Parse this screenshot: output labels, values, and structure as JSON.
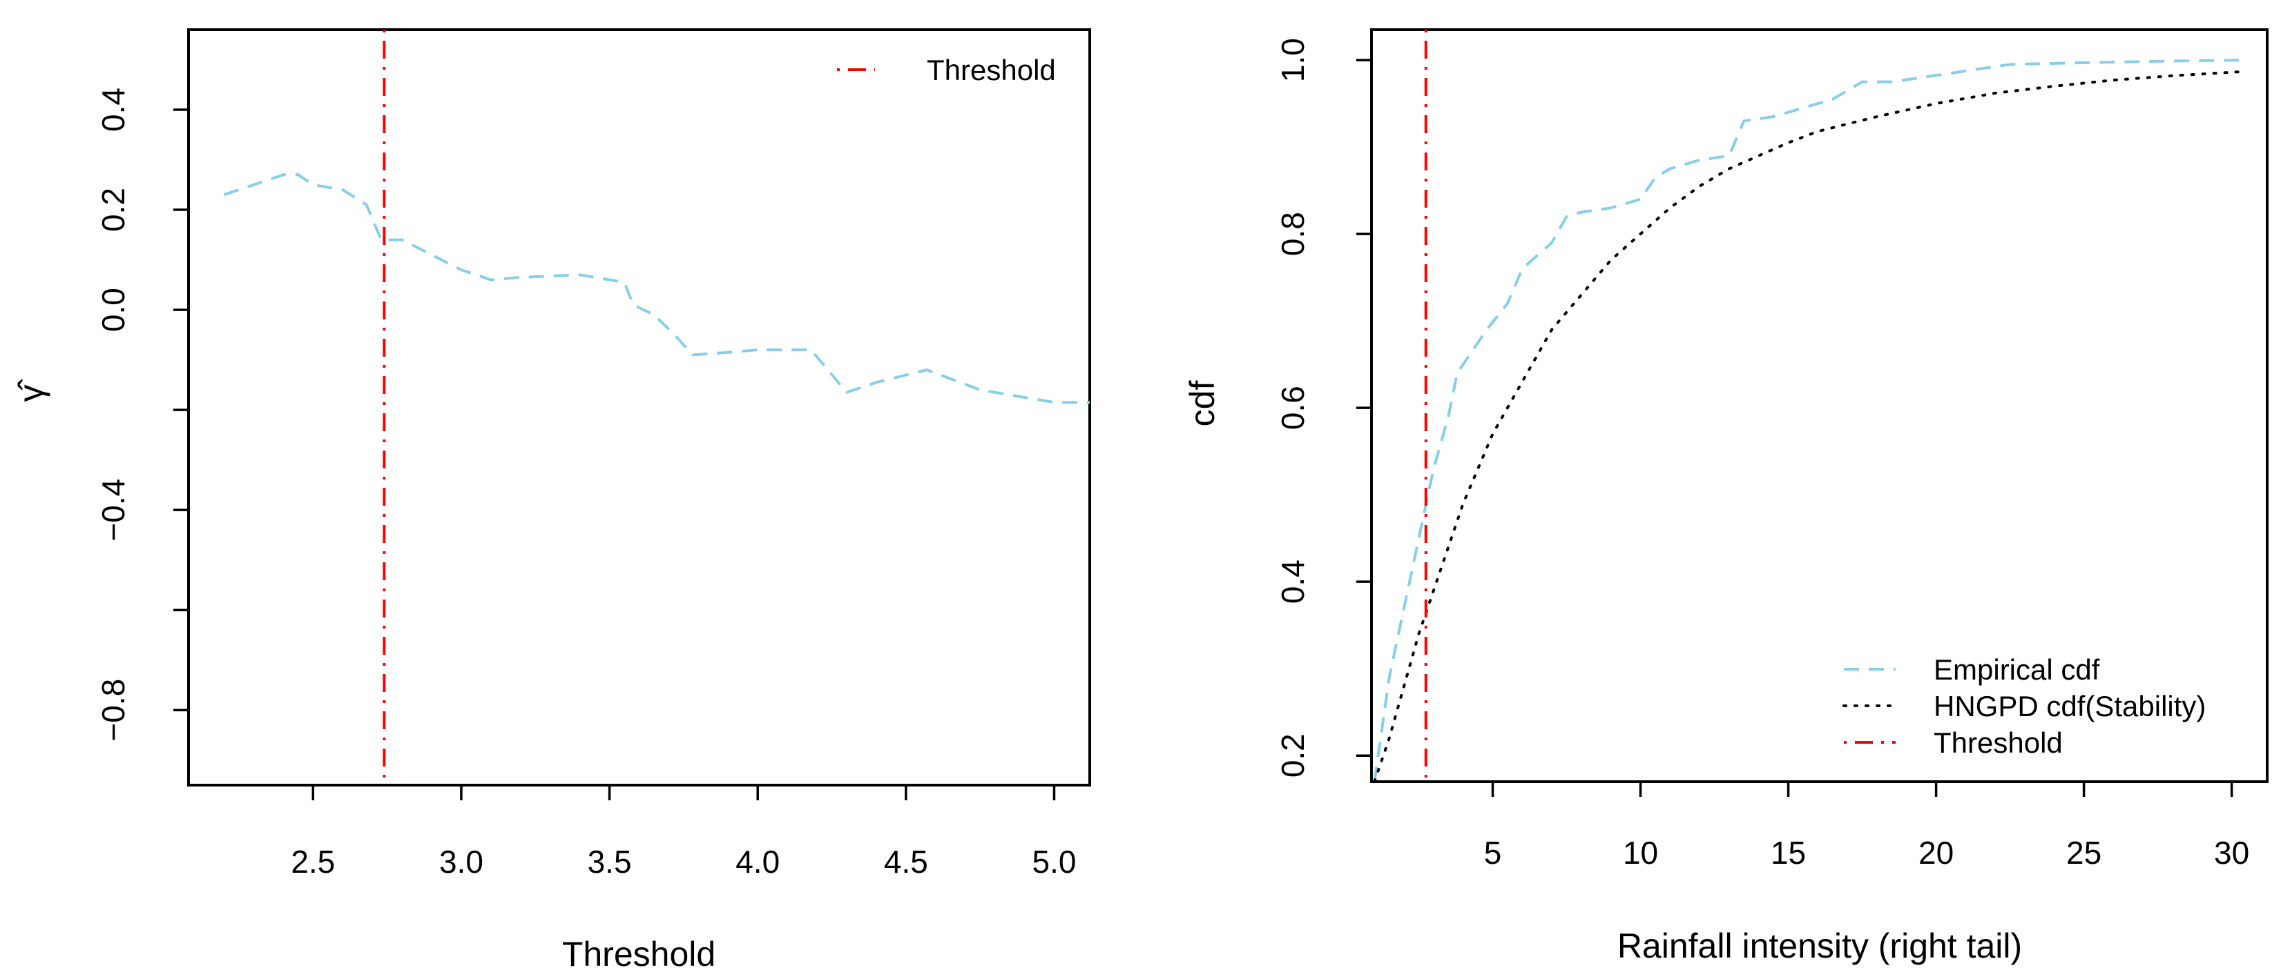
{
  "colors": {
    "empirical": "#87CEEB",
    "threshold": "#FF0000",
    "model": "#000000"
  },
  "chart_data": [
    {
      "type": "line",
      "title": "",
      "xlabel": "Threshold",
      "ylabel": "γ̂",
      "xlim": [
        2.08,
        5.12
      ],
      "ylim": [
        -0.95,
        0.56
      ],
      "x_ticks": [
        2.5,
        3.0,
        3.5,
        4.0,
        4.5,
        5.0
      ],
      "x_tick_labels": [
        "2.5",
        "3.0",
        "3.5",
        "4.0",
        "4.5",
        "5.0"
      ],
      "y_ticks": [
        -0.8,
        -0.6,
        -0.4,
        -0.2,
        0.0,
        0.2,
        0.4
      ],
      "y_tick_labels": [
        "−0.8",
        "",
        "−0.4",
        "",
        "0.0",
        "0.2",
        "0.4"
      ],
      "legend_position": "top-right",
      "series": [
        {
          "name": "gamma-hat",
          "style": "dashed",
          "color": "#87CEEB",
          "x": [
            2.2,
            2.3,
            2.4,
            2.45,
            2.5,
            2.6,
            2.68,
            2.73,
            2.8,
            2.9,
            3.0,
            3.1,
            3.2,
            3.4,
            3.55,
            3.58,
            3.65,
            3.72,
            3.78,
            3.9,
            4.0,
            4.18,
            4.3,
            4.4,
            4.57,
            4.75,
            4.9,
            5.0,
            5.12
          ],
          "y": [
            0.23,
            0.25,
            0.27,
            0.27,
            0.25,
            0.24,
            0.21,
            0.14,
            0.14,
            0.11,
            0.08,
            0.06,
            0.065,
            0.07,
            0.055,
            0.01,
            -0.01,
            -0.05,
            -0.09,
            -0.085,
            -0.08,
            -0.08,
            -0.165,
            -0.145,
            -0.12,
            -0.16,
            -0.175,
            -0.185,
            -0.185
          ]
        }
      ],
      "vline": {
        "name": "Threshold",
        "x": 2.74,
        "style": "dotdash",
        "color": "#FF0000"
      },
      "legend": [
        {
          "label": "Threshold",
          "style": "dotdash",
          "color": "#FF0000"
        }
      ]
    },
    {
      "type": "line",
      "title": "",
      "xlabel": "Rainfall intensity (right tail)",
      "ylabel": "cdf",
      "xlim": [
        0.9,
        31.2
      ],
      "ylim": [
        0.17,
        1.035
      ],
      "x_ticks": [
        5,
        10,
        15,
        20,
        25,
        30
      ],
      "x_tick_labels": [
        "5",
        "10",
        "15",
        "20",
        "25",
        "30"
      ],
      "y_ticks": [
        0.2,
        0.4,
        0.6,
        0.8,
        1.0
      ],
      "y_tick_labels": [
        "0.2",
        "0.4",
        "0.6",
        "0.8",
        "1.0"
      ],
      "legend_position": "bottom-right",
      "series": [
        {
          "name": "Empirical cdf",
          "style": "dashed",
          "color": "#87CEEB",
          "x": [
            1.0,
            1.5,
            2.0,
            2.5,
            3.0,
            3.5,
            3.8,
            4.2,
            4.8,
            5.5,
            6.0,
            7.0,
            7.5,
            8.0,
            9.0,
            10.0,
            10.5,
            11.0,
            12.0,
            13.0,
            13.5,
            14.5,
            15.5,
            16.5,
            17.5,
            18.5,
            19.5,
            20.5,
            21.5,
            22.5,
            25.0,
            28.0,
            30.5
          ],
          "y": [
            0.17,
            0.29,
            0.37,
            0.45,
            0.53,
            0.59,
            0.64,
            0.66,
            0.69,
            0.72,
            0.76,
            0.79,
            0.82,
            0.825,
            0.83,
            0.84,
            0.865,
            0.875,
            0.885,
            0.89,
            0.93,
            0.935,
            0.945,
            0.955,
            0.975,
            0.975,
            0.98,
            0.985,
            0.99,
            0.995,
            0.997,
            0.999,
            1.0
          ]
        },
        {
          "name": "HNGPD cdf(Stability)",
          "style": "dotted",
          "color": "#000000",
          "x": [
            1.0,
            1.5,
            2.0,
            2.5,
            3.0,
            3.5,
            4.0,
            5.0,
            6.0,
            7.0,
            8.0,
            9.0,
            10.0,
            11.0,
            12.0,
            13.0,
            14.0,
            15.0,
            16.0,
            18.0,
            20.0,
            22.0,
            24.0,
            26.0,
            28.0,
            30.5
          ],
          "y": [
            0.17,
            0.22,
            0.28,
            0.34,
            0.39,
            0.44,
            0.49,
            0.57,
            0.63,
            0.69,
            0.73,
            0.77,
            0.8,
            0.83,
            0.855,
            0.875,
            0.89,
            0.905,
            0.918,
            0.935,
            0.95,
            0.962,
            0.97,
            0.977,
            0.982,
            0.987
          ]
        }
      ],
      "vline": {
        "name": "Threshold",
        "x": 2.74,
        "style": "dotdash",
        "color": "#FF0000"
      },
      "legend": [
        {
          "label": "Empirical cdf",
          "style": "dashed",
          "color": "#87CEEB"
        },
        {
          "label": "HNGPD cdf(Stability)",
          "style": "dotted",
          "color": "#000000"
        },
        {
          "label": "Threshold",
          "style": "dotdash",
          "color": "#FF0000"
        }
      ]
    }
  ]
}
